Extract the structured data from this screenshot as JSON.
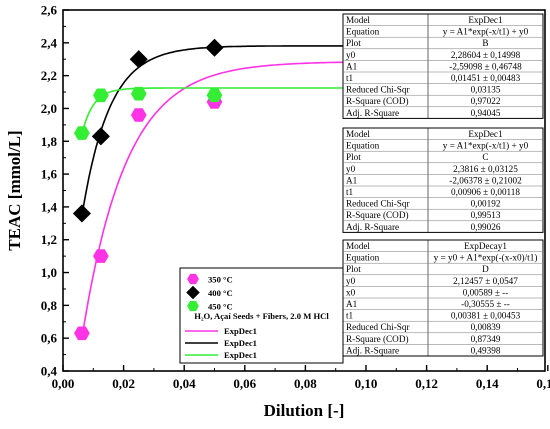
{
  "chart_data": {
    "type": "scatter",
    "xlabel": "Dilution [-]",
    "ylabel": "TEAC [mmol/L]",
    "xlim": [
      0.0,
      0.18
    ],
    "ylim": [
      0.4,
      2.6
    ],
    "xticks": [
      "0,00",
      "0,02",
      "0,04",
      "0,06",
      "0,08",
      "0,10",
      "0,12",
      "0,14",
      "0,16"
    ],
    "yticks": [
      "0,4",
      "0,6",
      "0,8",
      "1,0",
      "1,2",
      "1,4",
      "1,6",
      "1,8",
      "2,0",
      "2,2",
      "2,4",
      "2,6"
    ],
    "series": [
      {
        "name": "350 °C",
        "marker": "hexagon",
        "color": "#ff33e6",
        "points": [
          [
            0.00625,
            0.63
          ],
          [
            0.0125,
            1.1
          ],
          [
            0.025,
            1.96
          ],
          [
            0.05,
            2.04
          ],
          [
            0.1,
            2.37
          ]
        ]
      },
      {
        "name": "400 °C",
        "marker": "diamond",
        "color": "#000000",
        "points": [
          [
            0.00625,
            1.36
          ],
          [
            0.0125,
            1.83
          ],
          [
            0.025,
            2.3
          ],
          [
            0.05,
            2.37
          ],
          [
            0.1,
            2.37
          ]
        ]
      },
      {
        "name": "450 °C",
        "marker": "hexagon",
        "color": "#33ee33",
        "points": [
          [
            0.00625,
            1.85
          ],
          [
            0.0125,
            2.08
          ],
          [
            0.025,
            2.09
          ],
          [
            0.05,
            2.08
          ],
          [
            0.1,
            2.2
          ]
        ]
      }
    ],
    "fits": [
      {
        "name": "ExpDec1",
        "color": "#ff33e6",
        "model": "expdec1",
        "y0": 2.28604,
        "A1": -2.59098,
        "t1": 0.01451,
        "x_range": [
          0.00625,
          0.1
        ]
      },
      {
        "name": "ExpDec1",
        "color": "#000000",
        "model": "expdec1",
        "y0": 2.3816,
        "A1": -2.06378,
        "t1": 0.00906,
        "x_range": [
          0.00625,
          0.1
        ]
      },
      {
        "name": "ExpDec1",
        "color": "#33ee33",
        "model": "expdecay1",
        "y0": 2.12457,
        "x0": 0.00589,
        "A1": -0.30555,
        "t1": 0.00381,
        "x_range": [
          0.00625,
          0.1
        ]
      }
    ],
    "legend": {
      "entries": [
        "350 °C",
        "400 °C",
        "450 °C"
      ],
      "description": "H₂O, Açaí Seeds + Fibers, 2.0 M HCl",
      "fit_entries": [
        "ExpDec1",
        "ExpDec1",
        "ExpDec1"
      ]
    },
    "tables": [
      {
        "rows": [
          [
            "Model",
            "ExpDec1"
          ],
          [
            "Equation",
            "y = A1*exp(-x/t1) + y0"
          ],
          [
            "Plot",
            "B"
          ],
          [
            "y0",
            "2,28604 ± 0,14998"
          ],
          [
            "A1",
            "-2,59098 ± 0,46748"
          ],
          [
            "t1",
            "0,01451 ± 0,00483"
          ],
          [
            "Reduced Chi-Sqr",
            "0,03135"
          ],
          [
            "R-Square (COD)",
            "0,97022"
          ],
          [
            "Adj. R-Square",
            "0,94045"
          ]
        ]
      },
      {
        "rows": [
          [
            "Model",
            "ExpDec1"
          ],
          [
            "Equation",
            "y = A1*exp(-x/t1) + y0"
          ],
          [
            "Plot",
            "C"
          ],
          [
            "y0",
            "2,3816 ± 0,03125"
          ],
          [
            "A1",
            "-2,06378 ± 0,21002"
          ],
          [
            "t1",
            "0,00906 ± 0,00118"
          ],
          [
            "Reduced Chi-Sqr",
            "0,00192"
          ],
          [
            "R-Square (COD)",
            "0,99513"
          ],
          [
            "Adj. R-Square",
            "0,99026"
          ]
        ]
      },
      {
        "rows": [
          [
            "Model",
            "ExpDecay1"
          ],
          [
            "Equation",
            "y = y0 + A1*exp(-(x-x0)/t1)"
          ],
          [
            "Plot",
            "D"
          ],
          [
            "y0",
            "2,12457 ± 0,0547"
          ],
          [
            "x0",
            "0,00589 ± --"
          ],
          [
            "A1",
            "-0,30555 ± --"
          ],
          [
            "t1",
            "0,00381 ± 0,00453"
          ],
          [
            "Reduced Chi-Sqr",
            "0,00839"
          ],
          [
            "R-Square (COD)",
            "0,87349"
          ],
          [
            "Adj. R-Square",
            "0,49398"
          ]
        ]
      }
    ]
  }
}
